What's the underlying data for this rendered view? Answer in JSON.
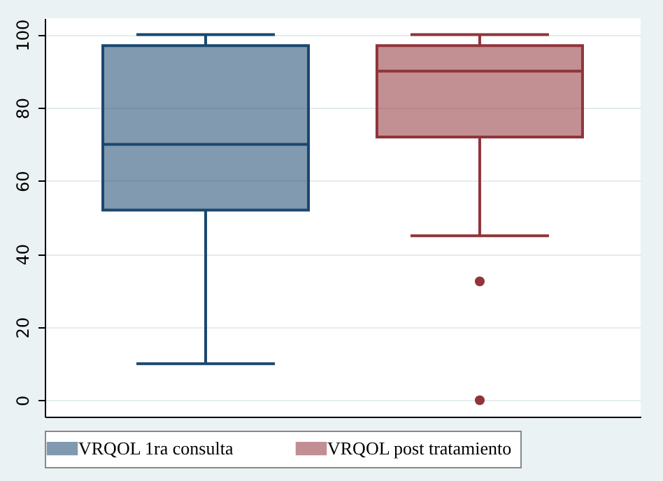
{
  "chart_data": {
    "type": "box",
    "categories": [
      null,
      null
    ],
    "series": [
      {
        "name": "VRQOL 1ra consulta",
        "color": "#1a476f",
        "boxes": [
          {
            "low": 10,
            "q1": 52,
            "median": 70,
            "q3": 97,
            "high": 100
          },
          null
        ]
      },
      {
        "name": "VRQOL post tratamiento",
        "color": "#90353b",
        "boxes": [
          null,
          {
            "low": 45,
            "q1": 72,
            "median": 90,
            "q3": 97,
            "high": 100,
            "outliers": [
              32.5,
              0
            ]
          }
        ]
      }
    ],
    "ylim": [
      -4.5,
      104.5
    ],
    "yticks": [
      0,
      20,
      40,
      60,
      80,
      100
    ],
    "grid": "y",
    "legend": "bottom",
    "tick_labels": "y"
  }
}
